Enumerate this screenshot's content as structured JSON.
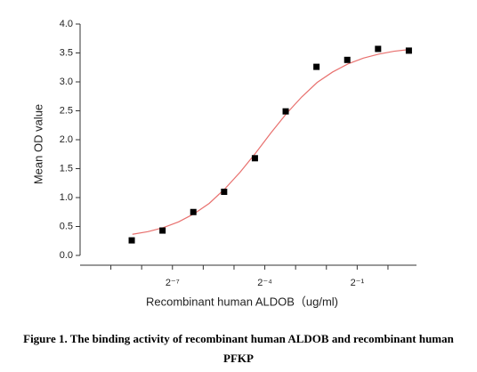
{
  "chart_data": {
    "type": "scatter",
    "xlabel": "Recombinant human ALDOB（ug/ml)",
    "ylabel": "Mean OD value",
    "xlog": true,
    "xlim": [
      0.000977,
      1.9
    ],
    "xticks": [
      {
        "value": 0.0078125,
        "label": "2⁻⁷"
      },
      {
        "value": 0.0625,
        "label": "2⁻⁴"
      },
      {
        "value": 0.5,
        "label": "2⁻¹"
      }
    ],
    "xminorticks": [
      0.001953125,
      0.00390625,
      0.015625,
      0.03125,
      0.125,
      0.25,
      1
    ],
    "ylim": [
      0,
      4
    ],
    "yticks": [
      {
        "value": 0,
        "label": "0.0"
      },
      {
        "value": 0.5,
        "label": "0.5"
      },
      {
        "value": 1,
        "label": "1.0"
      },
      {
        "value": 1.5,
        "label": "1.5"
      },
      {
        "value": 2,
        "label": "2.0"
      },
      {
        "value": 2.5,
        "label": "2.5"
      },
      {
        "value": 3,
        "label": "3.0"
      },
      {
        "value": 3.5,
        "label": "3.5"
      },
      {
        "value": 4,
        "label": "4.0"
      }
    ],
    "series": [
      {
        "marker": "square",
        "color": "#000000",
        "x": [
          0.003125,
          0.00625,
          0.0125,
          0.025,
          0.05,
          0.1,
          0.2,
          0.4,
          0.8,
          1.6
        ],
        "values": [
          0.26,
          0.43,
          0.75,
          1.1,
          1.68,
          2.49,
          3.26,
          3.38,
          3.57,
          3.54
        ]
      },
      {
        "marker": "line",
        "color": "#e8706e",
        "x": [
          0.00317,
          0.00449,
          0.00635,
          0.00897,
          0.0127,
          0.0179,
          0.0254,
          0.0359,
          0.0508,
          0.0718,
          0.1015,
          0.1436,
          0.2031,
          0.2872,
          0.4061,
          0.5743,
          0.8123,
          1.1487,
          1.6245
        ],
        "values": [
          0.365,
          0.41,
          0.48,
          0.58,
          0.72,
          0.9,
          1.15,
          1.44,
          1.77,
          2.12,
          2.45,
          2.74,
          2.99,
          3.17,
          3.31,
          3.41,
          3.48,
          3.53,
          3.56
        ]
      }
    ]
  },
  "caption": "Figure 1. The binding activity of recombinant human ALDOB and recombinant human PFKP"
}
